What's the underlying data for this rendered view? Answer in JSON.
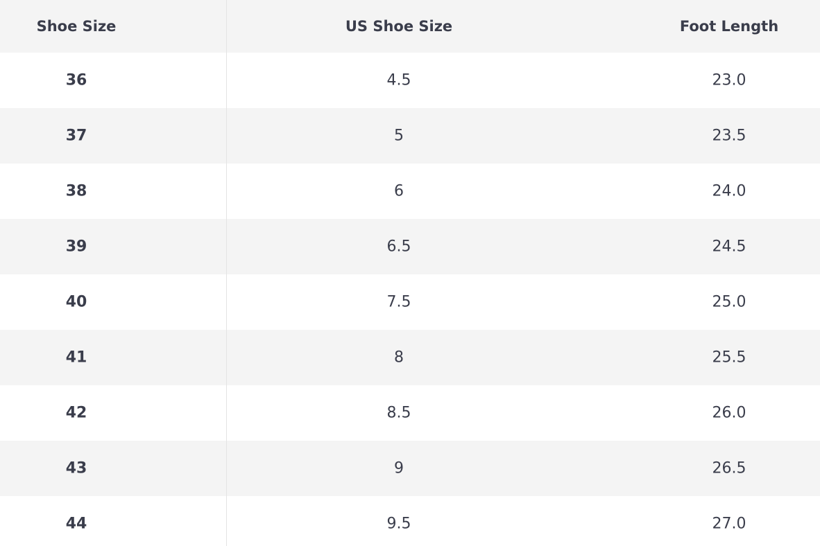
{
  "table": {
    "header": [
      "Shoe Size",
      "US Shoe Size",
      "Foot Length"
    ],
    "rows": [
      [
        "36",
        "4.5",
        "23.0"
      ],
      [
        "37",
        "5",
        "23.5"
      ],
      [
        "38",
        "6",
        "24.0"
      ],
      [
        "39",
        "6.5",
        "24.5"
      ],
      [
        "40",
        "7.5",
        "25.0"
      ],
      [
        "41",
        "8",
        "25.5"
      ],
      [
        "42",
        "8.5",
        "26.0"
      ],
      [
        "43",
        "9",
        "26.5"
      ],
      [
        "44",
        "9.5",
        "27.0"
      ]
    ]
  }
}
